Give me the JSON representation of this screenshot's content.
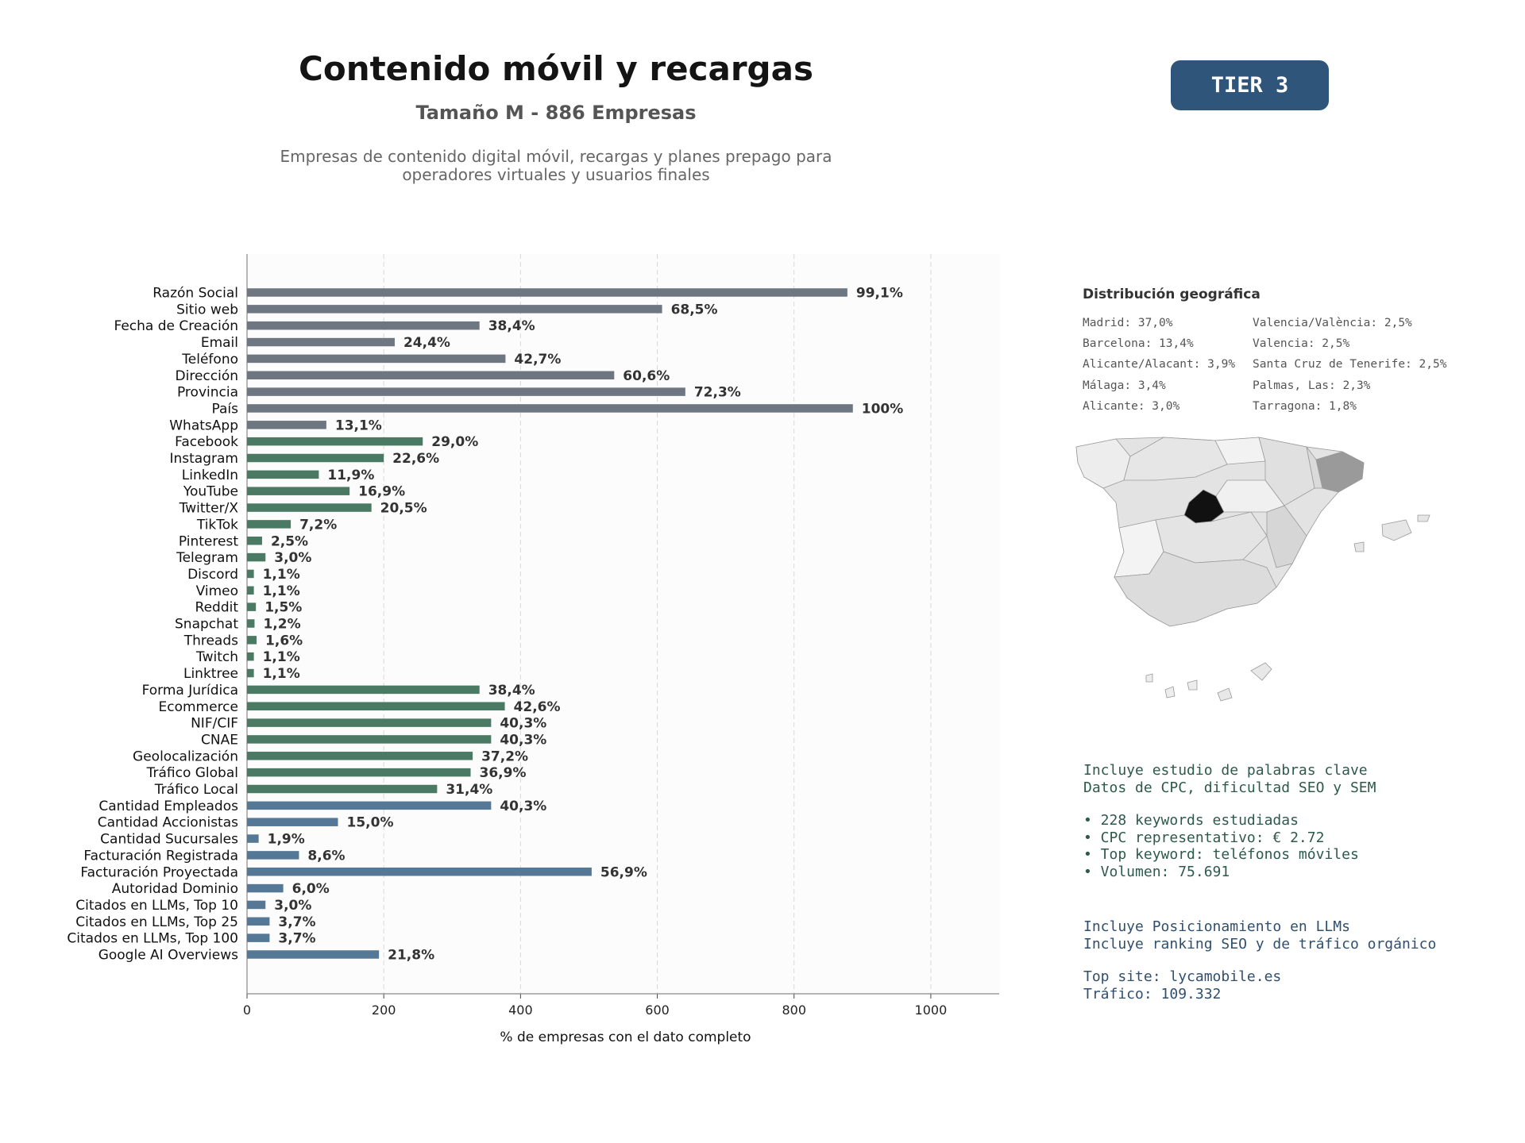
{
  "header": {
    "title": "Contenido móvil y recargas",
    "subtitle": "Tamaño M - 886 Empresas",
    "description_line1": "Empresas de contenido digital móvil, recargas y planes prepago para",
    "description_line2": "operadores virtuales y usuarios finales",
    "tier_label": "TIER 3"
  },
  "colors": {
    "group_basic": "#6e7781",
    "group_social": "#4a7a63",
    "group_business": "#557896",
    "tier_badge": "#2f557b"
  },
  "chart_data": {
    "type": "bar",
    "orientation": "horizontal",
    "xlabel": "% de empresas con el dato completo",
    "xlim": [
      0,
      1100
    ],
    "xticks": [
      0,
      200,
      400,
      600,
      800,
      1000
    ],
    "grid": "vertical dashed",
    "total_companies": 886,
    "bars": [
      {
        "category": "Razón Social",
        "value": 878,
        "label": "99,1%",
        "group": "basic"
      },
      {
        "category": "Sitio web",
        "value": 607,
        "label": "68,5%",
        "group": "basic"
      },
      {
        "category": "Fecha de Creación",
        "value": 340,
        "label": "38,4%",
        "group": "basic"
      },
      {
        "category": "Email",
        "value": 216,
        "label": "24,4%",
        "group": "basic"
      },
      {
        "category": "Teléfono",
        "value": 378,
        "label": "42,7%",
        "group": "basic"
      },
      {
        "category": "Dirección",
        "value": 537,
        "label": "60,6%",
        "group": "basic"
      },
      {
        "category": "Provincia",
        "value": 641,
        "label": "72,3%",
        "group": "basic"
      },
      {
        "category": "País",
        "value": 886,
        "label": "100%",
        "group": "basic"
      },
      {
        "category": "WhatsApp",
        "value": 116,
        "label": "13,1%",
        "group": "basic"
      },
      {
        "category": "Facebook",
        "value": 257,
        "label": "29,0%",
        "group": "social"
      },
      {
        "category": "Instagram",
        "value": 200,
        "label": "22,6%",
        "group": "social"
      },
      {
        "category": "LinkedIn",
        "value": 105,
        "label": "11,9%",
        "group": "social"
      },
      {
        "category": "YouTube",
        "value": 150,
        "label": "16,9%",
        "group": "social"
      },
      {
        "category": "Twitter/X",
        "value": 182,
        "label": "20,5%",
        "group": "social"
      },
      {
        "category": "TikTok",
        "value": 64,
        "label": "7,2%",
        "group": "social"
      },
      {
        "category": "Pinterest",
        "value": 22,
        "label": "2,5%",
        "group": "social"
      },
      {
        "category": "Telegram",
        "value": 27,
        "label": "3,0%",
        "group": "social"
      },
      {
        "category": "Discord",
        "value": 10,
        "label": "1,1%",
        "group": "social"
      },
      {
        "category": "Vimeo",
        "value": 10,
        "label": "1,1%",
        "group": "social"
      },
      {
        "category": "Reddit",
        "value": 13,
        "label": "1,5%",
        "group": "social"
      },
      {
        "category": "Snapchat",
        "value": 11,
        "label": "1,2%",
        "group": "social"
      },
      {
        "category": "Threads",
        "value": 14,
        "label": "1,6%",
        "group": "social"
      },
      {
        "category": "Twitch",
        "value": 10,
        "label": "1,1%",
        "group": "social"
      },
      {
        "category": "Linktree",
        "value": 10,
        "label": "1,1%",
        "group": "social"
      },
      {
        "category": "Forma Jurídica",
        "value": 340,
        "label": "38,4%",
        "group": "social"
      },
      {
        "category": "Ecommerce",
        "value": 377,
        "label": "42,6%",
        "group": "social"
      },
      {
        "category": "NIF/CIF",
        "value": 357,
        "label": "40,3%",
        "group": "social"
      },
      {
        "category": "CNAE",
        "value": 357,
        "label": "40,3%",
        "group": "social"
      },
      {
        "category": "Geolocalización",
        "value": 330,
        "label": "37,2%",
        "group": "social"
      },
      {
        "category": "Tráfico Global",
        "value": 327,
        "label": "36,9%",
        "group": "social"
      },
      {
        "category": "Tráfico Local",
        "value": 278,
        "label": "31,4%",
        "group": "social"
      },
      {
        "category": "Cantidad Empleados",
        "value": 357,
        "label": "40,3%",
        "group": "business"
      },
      {
        "category": "Cantidad Accionistas",
        "value": 133,
        "label": "15,0%",
        "group": "business"
      },
      {
        "category": "Cantidad Sucursales",
        "value": 17,
        "label": "1,9%",
        "group": "business"
      },
      {
        "category": "Facturación Registrada",
        "value": 76,
        "label": "8,6%",
        "group": "business"
      },
      {
        "category": "Facturación Proyectada",
        "value": 504,
        "label": "56,9%",
        "group": "business"
      },
      {
        "category": "Autoridad Dominio",
        "value": 53,
        "label": "6,0%",
        "group": "business"
      },
      {
        "category": "Citados en LLMs, Top 10",
        "value": 27,
        "label": "3,0%",
        "group": "business"
      },
      {
        "category": "Citados en LLMs, Top 25",
        "value": 33,
        "label": "3,7%",
        "group": "business"
      },
      {
        "category": "Citados en LLMs, Top 100",
        "value": 33,
        "label": "3,7%",
        "group": "business"
      },
      {
        "category": "Google AI Overviews",
        "value": 193,
        "label": "21,8%",
        "group": "business"
      }
    ]
  },
  "geo": {
    "title": "Distribución geográfica",
    "items": [
      "Madrid: 37,0%",
      "Barcelona: 13,4%",
      "Alicante/Alacant: 3,9%",
      "Málaga: 3,4%",
      "Alicante: 3,0%",
      "Valencia/València: 2,5%",
      "Valencia: 2,5%",
      "Santa Cruz de Tenerife: 2,5%",
      "Palmas, Las: 2,3%",
      "Tarragona: 1,8%"
    ]
  },
  "keywords": {
    "line1": "Incluye estudio de palabras clave",
    "line2": "Datos de CPC, dificultad SEO y SEM",
    "bullets": [
      "• 228 keywords estudiadas",
      "• CPC representativo: € 2.72",
      "• Top keyword: teléfonos móviles",
      "• Volumen: 75.691"
    ]
  },
  "llm": {
    "line1": "Incluye Posicionamiento en LLMs",
    "line2": "Incluye ranking SEO y de tráfico orgánico",
    "top_site": "Top site: lycamobile.es",
    "traffic": "Tráfico: 109.332"
  }
}
